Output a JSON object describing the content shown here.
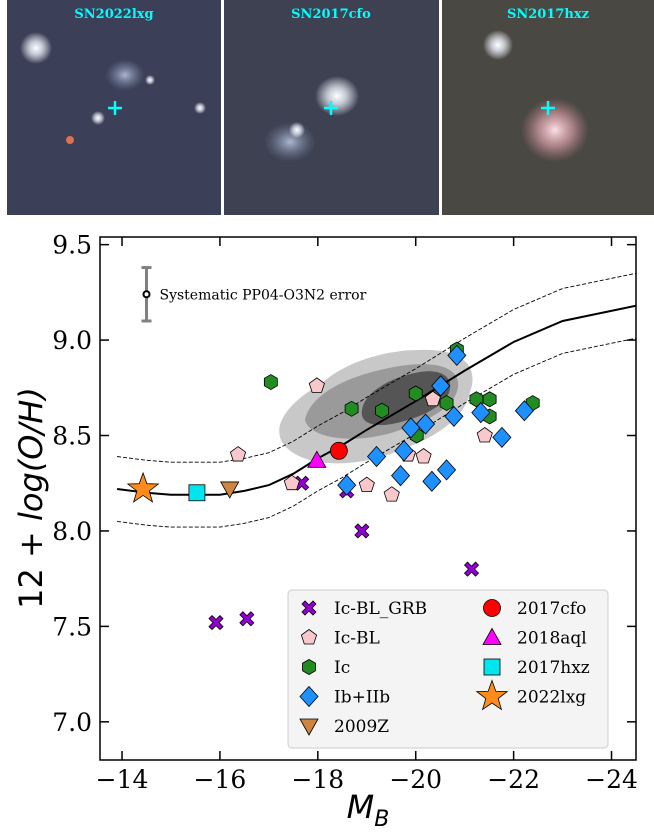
{
  "chart_data": {
    "type": "scatter",
    "images": [
      {
        "label": "SN2022lxg"
      },
      {
        "label": "SN2017cfo"
      },
      {
        "label": "SN2017hxz"
      }
    ],
    "x_label": {
      "main": "M",
      "sub": "B"
    },
    "y_label": {
      "prefix": "12 + ",
      "italic": "log(O/H)"
    },
    "xlim": [
      -13.55,
      -24.5
    ],
    "ylim": [
      6.8,
      9.54
    ],
    "xticks": [
      {
        "value": -14,
        "label": "−14"
      },
      {
        "value": -16,
        "label": "−16"
      },
      {
        "value": -18,
        "label": "−18"
      },
      {
        "value": -20,
        "label": "−20"
      },
      {
        "value": -22,
        "label": "−22"
      },
      {
        "value": -24,
        "label": "−24"
      }
    ],
    "yticks": [
      {
        "value": 7,
        "label": "7.0"
      },
      7.5,
      {
        "value": 8,
        "label": "8.0"
      },
      8.5,
      {
        "value": 9,
        "label": "9.0"
      },
      9.5
    ],
    "legend": "lower right",
    "error_bar": {
      "label": "Systematic PP04-O3N2 error",
      "x": -14.5,
      "y": 9.24,
      "err": 0.14
    },
    "curves": [
      {
        "style": "solid",
        "x": [
          -13.9,
          -14.5,
          -15,
          -15.5,
          -16,
          -16.5,
          -17,
          -17.5,
          -18,
          -18.5,
          -19,
          -20,
          -21,
          -22,
          -23,
          -24.5
        ],
        "y": [
          8.22,
          8.2,
          8.19,
          8.19,
          8.19,
          8.21,
          8.24,
          8.3,
          8.38,
          8.45,
          8.53,
          8.68,
          8.84,
          8.99,
          9.1,
          9.18
        ]
      },
      {
        "style": "dashed",
        "x": [
          -13.9,
          -14.5,
          -15,
          -15.5,
          -16,
          -16.5,
          -17,
          -17.5,
          -18,
          -18.5,
          -19,
          -20,
          -21,
          -22,
          -23,
          -24.5
        ],
        "y": [
          8.39,
          8.37,
          8.36,
          8.36,
          8.36,
          8.38,
          8.41,
          8.47,
          8.55,
          8.62,
          8.7,
          8.85,
          9.01,
          9.16,
          9.27,
          9.35
        ]
      },
      {
        "style": "dashed",
        "x": [
          -13.9,
          -14.5,
          -15,
          -15.5,
          -16,
          -16.5,
          -17,
          -17.5,
          -18,
          -18.5,
          -19,
          -20,
          -21,
          -22,
          -23,
          -24.5
        ],
        "y": [
          8.05,
          8.03,
          8.02,
          8.02,
          8.02,
          8.04,
          8.07,
          8.13,
          8.21,
          8.28,
          8.36,
          8.51,
          8.67,
          8.82,
          8.93,
          9.01
        ]
      }
    ],
    "series": [
      {
        "name": "Ic-BL_GRB",
        "color": "#9400d3",
        "marker": "x",
        "x": [
          -17.67,
          -18.59,
          -18.9,
          -21.14,
          -15.92,
          -16.55
        ],
        "y": [
          8.25,
          8.21,
          8.0,
          7.8,
          7.52,
          7.54
        ]
      },
      {
        "name": "Ic-BL",
        "color": "#f8c8cc",
        "marker": "pentagon",
        "x": [
          -16.37,
          -17.98,
          -17.47,
          -19.0,
          -19.51,
          -19.84,
          -20.16,
          -20.35,
          -21.41
        ],
        "y": [
          8.4,
          8.76,
          8.25,
          8.24,
          8.19,
          8.4,
          8.39,
          8.69,
          8.5
        ]
      },
      {
        "name": "Ic",
        "color": "#228b22",
        "marker": "hexagon",
        "x": [
          -17.04,
          -18.69,
          -19.31,
          -20.0,
          -20.84,
          -20.02,
          -20.63,
          -21.24,
          -21.51,
          -21.51,
          -22.39
        ],
        "y": [
          8.78,
          8.64,
          8.63,
          8.72,
          8.95,
          8.5,
          8.67,
          8.69,
          8.69,
          8.6,
          8.67
        ]
      },
      {
        "name": "Ib+IIb",
        "color": "#1e90ff",
        "marker": "diamond",
        "x": [
          -20.84,
          -20.51,
          -19.9,
          -20.2,
          -20.78,
          -21.33,
          -22.22,
          -21.76,
          -19.76,
          -19.2,
          -19.69,
          -20.63,
          -20.33,
          -18.59
        ],
        "y": [
          8.92,
          8.76,
          8.54,
          8.56,
          8.6,
          8.62,
          8.63,
          8.49,
          8.42,
          8.39,
          8.29,
          8.32,
          8.26,
          8.24
        ]
      },
      {
        "name": "2009Z",
        "color": "#cd853f",
        "marker": "tri-down",
        "x": [
          -16.2
        ],
        "y": [
          8.22
        ]
      },
      {
        "name": "2017cfo",
        "color": "#ff0000",
        "marker": "circle",
        "x": [
          -18.43
        ],
        "y": [
          8.42
        ]
      },
      {
        "name": "2018aql",
        "color": "#ff00ff",
        "marker": "tri-up",
        "x": [
          -17.98
        ],
        "y": [
          8.37
        ]
      },
      {
        "name": "2017hxz",
        "color": "#00e5ee",
        "marker": "square",
        "x": [
          -15.53
        ],
        "y": [
          8.2
        ]
      },
      {
        "name": "2022lxg",
        "color": "#ff8c1a",
        "marker": "star",
        "x": [
          -14.43
        ],
        "y": [
          8.22
        ]
      }
    ]
  }
}
